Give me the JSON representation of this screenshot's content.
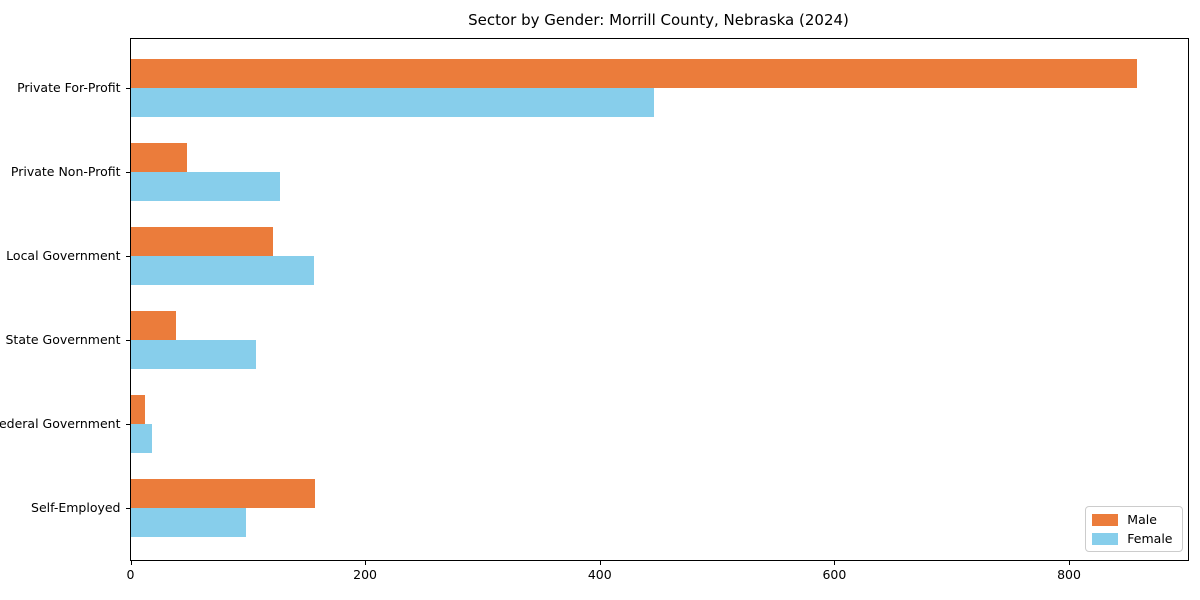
{
  "chart_data": {
    "type": "bar",
    "orientation": "horizontal",
    "title": "Sector by Gender: Morrill County, Nebraska (2024)",
    "categories": [
      "Private For-Profit",
      "Private Non-Profit",
      "Local Government",
      "State Government",
      "Federal Government",
      "Self-Employed"
    ],
    "series": [
      {
        "name": "Male",
        "color": "#eb7c3b",
        "values": [
          858,
          48,
          121,
          39,
          12,
          157
        ]
      },
      {
        "name": "Female",
        "color": "#87ceeb",
        "values": [
          446,
          127,
          156,
          107,
          18,
          98
        ]
      }
    ],
    "xlabel": "",
    "ylabel": "",
    "xlim": [
      0,
      901
    ],
    "xticks": [
      0,
      200,
      400,
      600,
      800
    ],
    "grid": false,
    "legend_position": "lower right"
  }
}
